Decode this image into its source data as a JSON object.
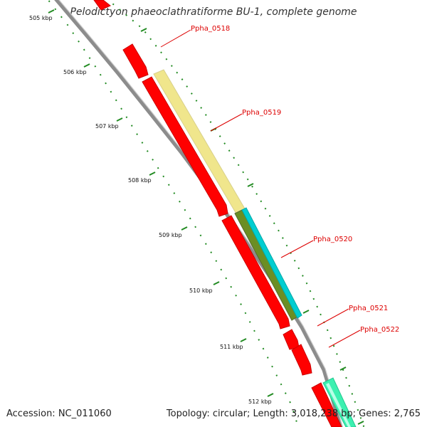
{
  "title": "Pelodictyon phaeoclathratiforme BU-1, complete genome",
  "footer": {
    "accession": "Accession: NC_011060",
    "summary": "Topology: circular; Length: 3,018,238 bp; Genes: 2,765"
  },
  "colors": {
    "backbone": "#8c8c8c",
    "ticks": "#228b22",
    "forward_cds": "#ff0000",
    "label": "#dd0000"
  },
  "ruler": {
    "ticks": [
      "505 kbp",
      "506 kbp",
      "507 kbp",
      "508 kbp",
      "509 kbp",
      "510 kbp",
      "511 kbp",
      "512 kbp"
    ]
  },
  "genes": [
    {
      "label": "Ppha_0518",
      "track": "cds",
      "color": "#ff0000"
    },
    {
      "label": "Ppha_0519",
      "track": "cds",
      "color": "#ff0000"
    },
    {
      "label": "Ppha_0520",
      "track": "cds",
      "color": "#ff0000"
    },
    {
      "label": "Ppha_0521",
      "track": "cds",
      "color": "#ff0000"
    },
    {
      "label": "Ppha_0522",
      "track": "cds",
      "color": "#ff0000"
    }
  ],
  "feature_tracks": [
    {
      "name": "yellow-feature",
      "color": "#f0e68c"
    },
    {
      "name": "olive-feature",
      "color": "#6b8e23"
    },
    {
      "name": "cyan-feature",
      "color": "#00ced1"
    },
    {
      "name": "aquamarine-feature",
      "color": "#3cf0b0"
    }
  ]
}
